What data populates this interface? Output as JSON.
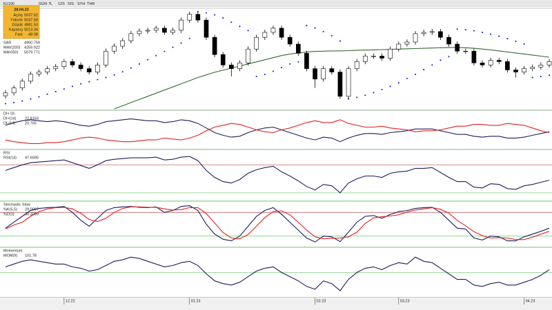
{
  "toolbar": [
    "XU100",
    "GÜN",
    "7L",
    "12S",
    "SIS",
    "SYH",
    "THR"
  ],
  "info_box": {
    "date": "28.04.23",
    "rows": [
      {
        "label": "Açılış",
        "value": 5037.62
      },
      {
        "label": "Yüksek",
        "value": 5037.68
      },
      {
        "label": "Düşük",
        "value": 4981.53
      },
      {
        "label": "Kapanış",
        "value": 5013.34
      },
      {
        "label": "Fark",
        "value": -48.08
      }
    ]
  },
  "chart_data": [
    {
      "type": "candlestick",
      "categories": [
        null,
        null,
        null,
        null,
        null,
        null,
        null,
        "12.22",
        null,
        null,
        null,
        null,
        null,
        null,
        null,
        null,
        null,
        null,
        null,
        null,
        null,
        null,
        "01.23",
        null,
        null,
        null,
        null,
        null,
        null,
        null,
        null,
        null,
        null,
        null,
        null,
        null,
        null,
        "02.23",
        null,
        null,
        null,
        null,
        null,
        null,
        null,
        null,
        null,
        "03.23",
        null,
        null,
        null,
        null,
        null,
        null,
        null,
        null,
        null,
        null,
        null,
        null,
        null,
        null,
        "04.23",
        null,
        null,
        null
      ],
      "open": [
        4150,
        4206,
        4300,
        4430,
        4565,
        4605,
        4670,
        4710,
        4805,
        4740,
        4670,
        4605,
        4740,
        5005,
        5100,
        5205,
        5340,
        5390,
        5405,
        5445,
        5365,
        5405,
        5600,
        5710,
        5600,
        5270,
        4940,
        4740,
        4670,
        4780,
        5045,
        5270,
        5365,
        5445,
        5270,
        5140,
        4965,
        4670,
        4470,
        4670,
        4605,
        4140,
        4670,
        4805,
        4910,
        4910,
        4870,
        5045,
        5140,
        5180,
        5340,
        5365,
        5380,
        5270,
        5140,
        5005,
        5005,
        4780,
        4740,
        4830,
        4805,
        4645,
        4605,
        4670,
        4700,
        4740
      ],
      "high": [
        4256,
        4350,
        4480,
        4615,
        4655,
        4720,
        4760,
        4855,
        4855,
        4790,
        4720,
        4790,
        5055,
        5150,
        5255,
        5390,
        5440,
        5455,
        5495,
        5495,
        5455,
        5650,
        5760,
        5760,
        5650,
        5320,
        4990,
        4790,
        4830,
        5095,
        5320,
        5415,
        5495,
        5495,
        5320,
        5190,
        5015,
        4720,
        4720,
        4720,
        4655,
        4720,
        4855,
        4960,
        4960,
        4960,
        5095,
        5190,
        5230,
        5390,
        5415,
        5430,
        5430,
        5320,
        5190,
        5055,
        5055,
        4830,
        4880,
        4880,
        4855,
        4695,
        4720,
        4750,
        4790,
        4855
      ],
      "low": [
        4100,
        4156,
        4250,
        4380,
        4515,
        4555,
        4620,
        4660,
        4690,
        4620,
        4555,
        4555,
        4690,
        4955,
        5050,
        5155,
        5290,
        5340,
        5355,
        5315,
        5315,
        5355,
        5550,
        5550,
        5220,
        4890,
        4690,
        4520,
        4620,
        4730,
        4995,
        5220,
        5315,
        5220,
        5090,
        4915,
        4620,
        4300,
        4420,
        4555,
        4090,
        4090,
        4620,
        4755,
        4860,
        4820,
        4820,
        4995,
        5090,
        5130,
        5290,
        5315,
        5220,
        5090,
        4955,
        4955,
        4730,
        4690,
        4690,
        4755,
        4595,
        4500,
        4555,
        4620,
        4650,
        4690
      ],
      "close": [
        4206,
        4300,
        4430,
        4565,
        4605,
        4670,
        4710,
        4805,
        4740,
        4670,
        4605,
        4740,
        5005,
        5100,
        5205,
        5340,
        5390,
        5405,
        5445,
        5365,
        5405,
        5600,
        5710,
        5600,
        5270,
        4940,
        4740,
        4670,
        4780,
        5045,
        5270,
        5365,
        5445,
        5270,
        5140,
        4965,
        4670,
        4470,
        4670,
        4605,
        4140,
        4670,
        4805,
        4910,
        4910,
        4870,
        5045,
        5140,
        5180,
        5340,
        5365,
        5380,
        5270,
        5140,
        5005,
        5005,
        4780,
        4740,
        4830,
        4805,
        4645,
        4605,
        4670,
        4700,
        4740,
        4805
      ],
      "ylim": [
        3900,
        5800
      ],
      "up_color": "#ffffff",
      "down_color": "#000000",
      "legend": [
        {
          "name": "SAR",
          "value": 4960.759,
          "color": "#2b3bd6"
        },
        {
          "name": "MAV(200)",
          "value": 4259.922,
          "color": "#2b3bd6"
        },
        {
          "name": "MAV(50)",
          "value": 5079.771,
          "color": "#2b3bd6"
        }
      ],
      "series": [
        {
          "name": "SAR",
          "style": "dots",
          "color": "#2233cc",
          "values": [
            4000,
            4020,
            4050,
            4090,
            4130,
            4180,
            4230,
            4280,
            4330,
            4380,
            4420,
            4460,
            4500,
            4550,
            4610,
            4680,
            4760,
            4840,
            4920,
            5000,
            5080,
            5160,
            5250,
            5760,
            5740,
            5700,
            5640,
            5560,
            5480,
            5400,
            4520,
            4560,
            4620,
            4690,
            4760,
            4800,
            5495,
            5450,
            5380,
            5300,
            5200,
            4090,
            4120,
            4160,
            4210,
            4270,
            4330,
            4400,
            4480,
            4560,
            4650,
            4740,
            4830,
            4900,
            5430,
            5415,
            5395,
            5365,
            5330,
            5290,
            5245,
            5195,
            5140,
            4500,
            4520,
            4545
          ]
        },
        {
          "name": "MAV(50)",
          "style": "line",
          "color": "#2f6b2f",
          "values": [
            null,
            null,
            null,
            null,
            null,
            null,
            null,
            null,
            null,
            null,
            null,
            null,
            null,
            3900,
            3960,
            4020,
            4080,
            4140,
            4200,
            4260,
            4320,
            4380,
            4440,
            4500,
            4550,
            4600,
            4640,
            4680,
            4720,
            4760,
            4800,
            4840,
            4880,
            4920,
            4950,
            4970,
            4990,
            5000,
            5005,
            5010,
            5010,
            5015,
            5020,
            5025,
            5030,
            5035,
            5040,
            5045,
            5050,
            5055,
            5060,
            5065,
            5070,
            5075,
            5075,
            5070,
            5060,
            5045,
            5030,
            5010,
            4990,
            4970,
            4950,
            4930,
            4910,
            4890
          ]
        }
      ]
    },
    {
      "type": "line",
      "title": "DI+ DI-",
      "ylim": [
        5,
        45
      ],
      "series": [
        {
          "name": "DI+(14)",
          "last": 22.8163,
          "color": "#1c1c5c",
          "values": [
            30,
            33,
            35,
            36,
            35,
            34,
            35,
            34,
            32,
            30,
            29,
            31,
            34,
            35,
            36,
            37,
            36,
            35,
            35,
            33,
            34,
            36,
            35,
            32,
            27,
            22,
            19,
            17,
            18,
            22,
            25,
            27,
            28,
            25,
            22,
            19,
            16,
            14,
            17,
            16,
            12,
            16,
            19,
            21,
            21,
            20,
            22,
            23,
            24,
            26,
            26,
            26,
            24,
            22,
            20,
            20,
            18,
            17,
            18,
            18,
            16,
            16,
            17,
            19,
            21,
            23
          ]
        },
        {
          "name": "DI-(14)",
          "last": 20.755,
          "color": "#e02020",
          "values": [
            14,
            12,
            11,
            10,
            10,
            11,
            11,
            12,
            14,
            16,
            17,
            16,
            14,
            13,
            12,
            12,
            13,
            14,
            14,
            16,
            15,
            14,
            16,
            19,
            24,
            28,
            30,
            32,
            31,
            28,
            25,
            23,
            22,
            25,
            27,
            30,
            33,
            35,
            33,
            33,
            36,
            32,
            30,
            28,
            28,
            29,
            27,
            26,
            25,
            23,
            24,
            24,
            25,
            27,
            29,
            29,
            31,
            31,
            30,
            30,
            32,
            31,
            30,
            27,
            24,
            22
          ]
        }
      ]
    },
    {
      "type": "line",
      "title": "RSI",
      "ylim": [
        20,
        90
      ],
      "levels": [
        {
          "value": 70,
          "color": "#c86464"
        },
        {
          "value": 30,
          "color": "#7ccf7c"
        }
      ],
      "series": [
        {
          "name": "RSI(14)",
          "last": 47.6595,
          "color": "#1c1c5c",
          "values": [
            62,
            66,
            70,
            73,
            74,
            75,
            76,
            77,
            73,
            69,
            65,
            70,
            76,
            78,
            79,
            80,
            80,
            80,
            81,
            77,
            78,
            81,
            82,
            76,
            62,
            52,
            46,
            44,
            49,
            58,
            63,
            66,
            68,
            60,
            54,
            47,
            39,
            34,
            42,
            40,
            30,
            44,
            50,
            54,
            54,
            52,
            58,
            60,
            61,
            65,
            65,
            66,
            59,
            52,
            46,
            46,
            38,
            37,
            43,
            42,
            36,
            35,
            40,
            42,
            45,
            48
          ]
        }
      ]
    },
    {
      "type": "line",
      "title": "Stochastic Slow",
      "ylim": [
        -5,
        105
      ],
      "levels": [
        {
          "value": 80,
          "color": "#c86464"
        },
        {
          "value": 20,
          "color": "#7ccf7c"
        }
      ],
      "series": [
        {
          "name": "%K(5,5)",
          "last": 29.0097,
          "color": "#1c1c5c",
          "values": [
            40,
            55,
            70,
            85,
            90,
            92,
            93,
            95,
            80,
            60,
            45,
            65,
            85,
            92,
            94,
            95,
            93,
            92,
            94,
            80,
            85,
            95,
            97,
            85,
            50,
            25,
            12,
            8,
            20,
            45,
            70,
            85,
            92,
            75,
            55,
            35,
            15,
            5,
            20,
            18,
            6,
            30,
            55,
            70,
            72,
            65,
            75,
            82,
            85,
            90,
            92,
            93,
            80,
            60,
            40,
            38,
            15,
            10,
            20,
            18,
            8,
            8,
            18,
            25,
            32,
            40
          ]
        },
        {
          "name": "%D(3)",
          "last": 30.3059,
          "color": "#e02020",
          "values": [
            38,
            48,
            55,
            70,
            82,
            89,
            92,
            93,
            89,
            78,
            62,
            57,
            65,
            80,
            90,
            94,
            94,
            93,
            93,
            89,
            86,
            87,
            92,
            92,
            77,
            53,
            29,
            15,
            13,
            24,
            45,
            67,
            82,
            84,
            74,
            55,
            35,
            18,
            13,
            14,
            15,
            18,
            30,
            52,
            66,
            69,
            71,
            74,
            81,
            86,
            89,
            92,
            88,
            78,
            60,
            46,
            31,
            21,
            15,
            16,
            15,
            11,
            11,
            17,
            25,
            32
          ]
        }
      ]
    },
    {
      "type": "line",
      "title": "Momentum",
      "ylim": [
        83,
        117
      ],
      "levels": [
        {
          "value": 100,
          "color": "#7ccf7c"
        }
      ],
      "series": [
        {
          "name": "MOM(9)",
          "last": 101.78,
          "color": "#1c1c5c",
          "values": [
            104,
            106,
            108,
            109,
            108,
            107,
            106,
            106,
            104,
            103,
            101,
            102,
            105,
            108,
            109,
            111,
            110,
            108,
            106,
            104,
            105,
            107,
            108,
            105,
            99,
            94,
            92,
            91,
            93,
            97,
            101,
            103,
            104,
            100,
            97,
            94,
            90,
            88,
            94,
            92,
            87,
            95,
            100,
            103,
            104,
            102,
            105,
            107,
            106,
            111,
            108,
            107,
            103,
            99,
            95,
            95,
            91,
            90,
            92,
            93,
            91,
            91,
            93,
            95,
            98,
            102
          ]
        }
      ]
    }
  ]
}
